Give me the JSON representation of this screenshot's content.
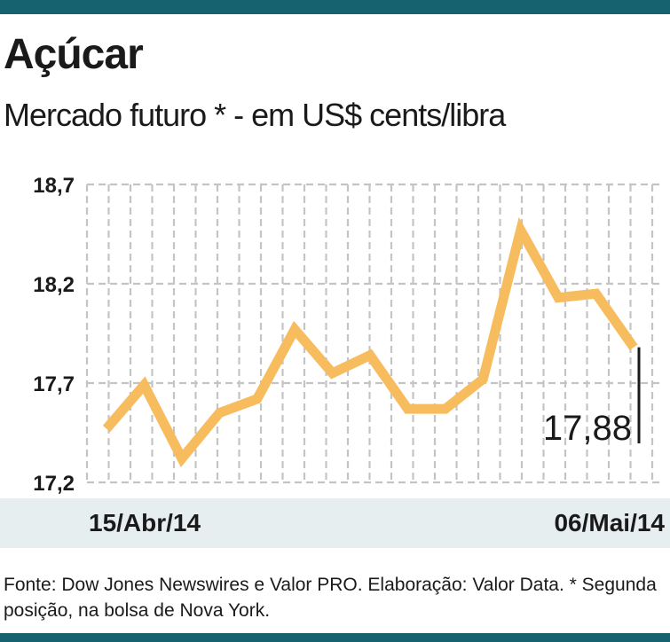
{
  "header": {
    "title": "Açúcar",
    "subtitle": "Mercado futuro * - em US$ cents/libra"
  },
  "chart_data": {
    "type": "line",
    "title": "Açúcar",
    "subtitle": "Mercado futuro * - em US$ cents/libra",
    "ylabel": "",
    "xlabel": "",
    "ylim": [
      17.2,
      18.7
    ],
    "yticks": [
      17.2,
      17.7,
      18.2,
      18.7
    ],
    "ytick_labels": [
      "17,2",
      "17,7",
      "18,2",
      "18,7"
    ],
    "x_start_label": "15/Abr/14",
    "x_end_label": "06/Mai/14",
    "series": [
      {
        "values": [
          17.47,
          17.69,
          17.32,
          17.55,
          17.62,
          17.97,
          17.75,
          17.84,
          17.57,
          17.57,
          17.72,
          18.47,
          18.13,
          18.15,
          17.88
        ]
      }
    ],
    "last_value_label": "17,88",
    "grid": true,
    "colors": {
      "line": "#f6bc5e",
      "grid": "#c4c4c4",
      "accent": "#16626e",
      "axis_band": "#e6eef0"
    }
  },
  "footer": {
    "source": "Fonte: Dow Jones Newswires e Valor PRO. Elaboração: Valor Data. * Segunda posição, na bolsa de Nova York."
  }
}
